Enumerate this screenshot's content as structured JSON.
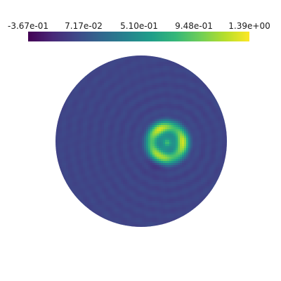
{
  "chart_data": {
    "type": "heatmap",
    "colormap": "viridis",
    "domain": "disk",
    "colorbar": {
      "orientation": "horizontal",
      "placement": "top",
      "range": [
        -0.367,
        1.39
      ],
      "ticks": [
        {
          "value": -0.367,
          "label": "-3.67e-01"
        },
        {
          "value": 0.0717,
          "label": "7.17e-02"
        },
        {
          "value": 0.51,
          "label": "5.10e-01"
        },
        {
          "value": 0.948,
          "label": "9.48e-01"
        },
        {
          "value": 1.39,
          "label": "1.39e+00"
        }
      ]
    },
    "field": {
      "background_value": 0.0,
      "ripple_amplitude": 0.04,
      "feature": {
        "description": "ring-shaped high region",
        "peak_value": 1.3,
        "inner_value": 0.35,
        "low_trough_value": -0.15
      }
    }
  },
  "colors": {
    "viridis_stops": [
      "#440154",
      "#482878",
      "#3e4989",
      "#31688e",
      "#26828e",
      "#1f9e89",
      "#35b779",
      "#6ece58",
      "#b5de2b",
      "#fde725"
    ]
  }
}
